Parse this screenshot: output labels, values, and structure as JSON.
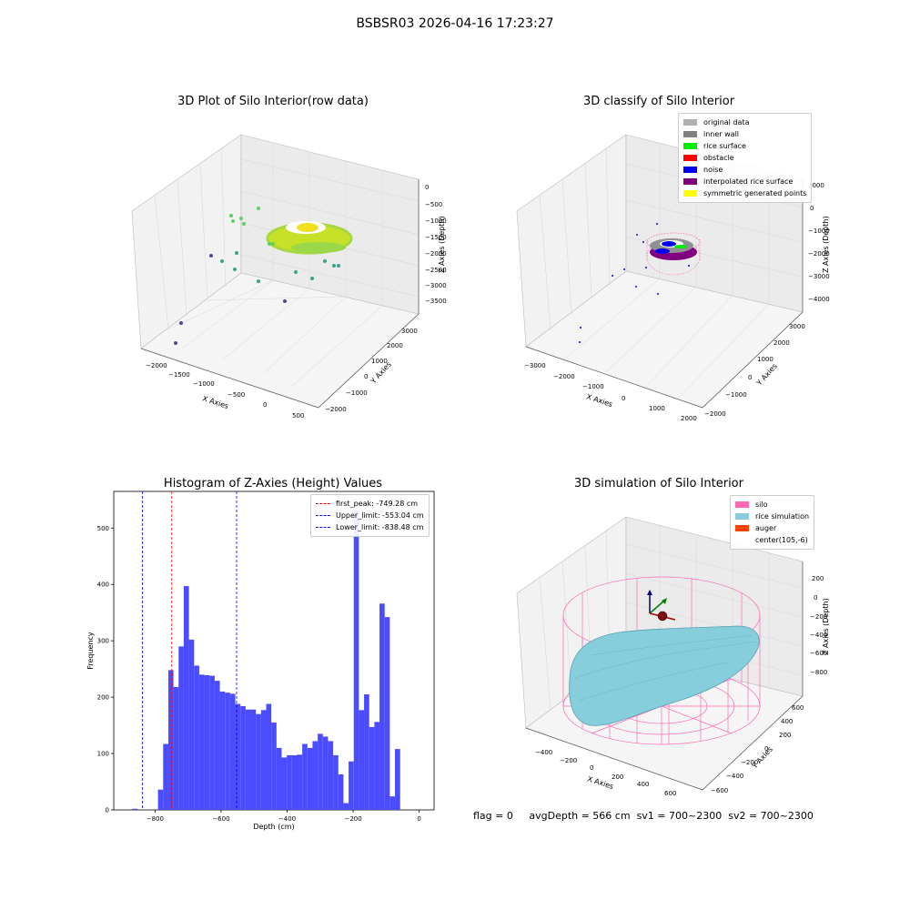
{
  "figure": {
    "title": "BSBSR03 2026-04-16 17:23:27",
    "footer": {
      "flag": "flag = 0",
      "avg_depth": "avgDepth = 566 cm",
      "sv1": "sv1 = 700~2300",
      "sv2": "sv2 = 700~2300"
    }
  },
  "colors": {
    "histogram_bar": "#4b4bff",
    "peak_line": "#ff0000",
    "limit_line": "#0000ff",
    "silo": "#ff69b4",
    "rice_simulation": "#87cedd",
    "auger": "#ff4500",
    "original_data": "#b0b0b0",
    "inner_wall": "#808080",
    "rice_surface": "#00ee00",
    "obstacle": "#ff0000",
    "noise": "#0000ee",
    "interpolated_rice_surface": "#800080",
    "symmetric_generated_points": "#ffff00"
  },
  "chart_data": [
    {
      "type": "scatter",
      "title": "3D Plot of Silo Interior(row data)",
      "xlabel": "X Axies",
      "ylabel": "Y Axies",
      "zlabel": "Z Axies (Depth)",
      "x_ticks": [
        "−2000",
        "−1500",
        "−1000",
        "−500",
        "0",
        "500"
      ],
      "y_ticks": [
        "−2000",
        "−1000",
        "0",
        "1000",
        "2000",
        "3000"
      ],
      "z_ticks": [
        "0",
        "−500",
        "−1000",
        "−1500",
        "−2000",
        "−2500",
        "−3000",
        "−3500"
      ]
    },
    {
      "type": "scatter",
      "title": "3D classify of Silo Interior",
      "xlabel": "X Axies",
      "ylabel": "Y Axies",
      "zlabel": "Z Axies (Depth)",
      "x_ticks": [
        "−3000",
        "−2000",
        "−1000",
        "0",
        "1000",
        "2000"
      ],
      "y_ticks": [
        "−2000",
        "−1000",
        "0",
        "1000",
        "2000",
        "3000"
      ],
      "z_ticks": [
        "1000",
        "0",
        "−1000",
        "−2000",
        "−3000",
        "−4000"
      ],
      "legend": [
        "original data",
        "inner wall",
        "rice surface",
        "obstacle",
        "noise",
        "interpolated rice surface",
        "symmetric generated points"
      ]
    },
    {
      "type": "bar",
      "title": "Histogram of Z-Axies (Height) Values",
      "xlabel": "Depth (cm)",
      "ylabel": "Frequency",
      "xlim": [
        -925,
        45
      ],
      "ylim": [
        0,
        565
      ],
      "x_ticks": [
        "−800",
        "−600",
        "−400",
        "−200",
        "0"
      ],
      "x_tick_values": [
        -800,
        -600,
        -400,
        -200,
        0
      ],
      "y_ticks": [
        "0",
        "100",
        "200",
        "300",
        "400",
        "500"
      ],
      "y_tick_values": [
        0,
        100,
        200,
        300,
        400,
        500
      ],
      "bin_width": 15.6,
      "bin_start": -869,
      "values": [
        2,
        0,
        0,
        0,
        0,
        36,
        117,
        248,
        218,
        290,
        397,
        302,
        256,
        240,
        239,
        238,
        229,
        210,
        208,
        206,
        188,
        184,
        178,
        178,
        170,
        177,
        188,
        155,
        110,
        93,
        97,
        97,
        98,
        117,
        110,
        122,
        135,
        130,
        122,
        97,
        63,
        12,
        86,
        532,
        177,
        205,
        147,
        156,
        366,
        342,
        24,
        108
      ],
      "reference_lines": [
        {
          "label": "first_peak: -749.28 cm",
          "x": -749.28,
          "color": "#ff0000"
        },
        {
          "label": "Upper_limit: -553.04 cm",
          "x": -553.04,
          "color": "#0000ff"
        },
        {
          "label": "Lower_limit: -838.48 cm",
          "x": -838.48,
          "color": "#0000ff"
        }
      ]
    },
    {
      "type": "area",
      "title": "3D simulation of Silo Interior",
      "xlabel": "X Axies",
      "ylabel": "Y Axies",
      "zlabel": "Z Axies (Depth)",
      "x_ticks": [
        "−400",
        "−200",
        "0",
        "200",
        "400",
        "600"
      ],
      "y_ticks": [
        "−600",
        "−400",
        "−200",
        "0",
        "200",
        "400",
        "600"
      ],
      "z_ticks": [
        "200",
        "0",
        "−200",
        "−400",
        "−600",
        "−800"
      ],
      "legend": [
        "silo",
        "rice simulation",
        "auger",
        "center(105,-6)"
      ]
    }
  ]
}
